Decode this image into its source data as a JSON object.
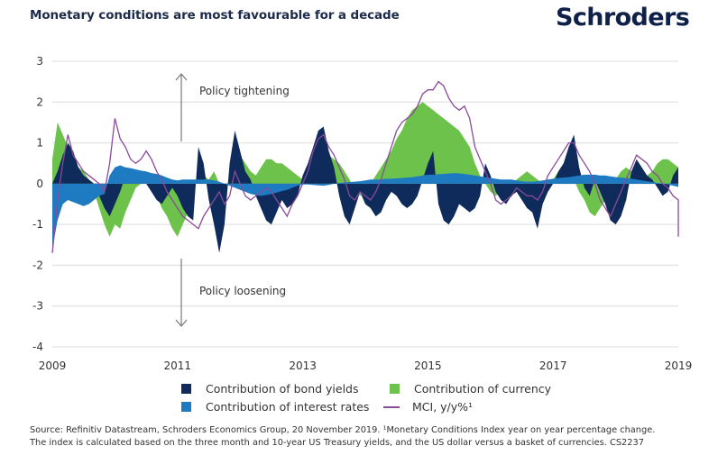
{
  "header": {
    "title": "Monetary conditions are most favourable for a decade",
    "logo": "Schroders"
  },
  "source": {
    "line1": "Source: Refinitiv Datastream, Schroders Economics Group, 20 November 2019. ¹Monetary Conditions Index year on year percentage change.",
    "line2": "The index is calculated based on the three month and 10-year US Treasury yields, and the US dollar versus a basket of currencies. CS2237"
  },
  "colors": {
    "bond": "#0f2b5b",
    "currency": "#6cc24a",
    "rates": "#1f7bc1",
    "mci": "#8a4a9a",
    "grid": "#e3e3e3",
    "arrow": "#777777"
  },
  "chart_data": {
    "type": "area",
    "title": "Monetary conditions are most favourable for a decade",
    "xlabel": "",
    "ylabel": "",
    "ylim": [
      -4,
      3
    ],
    "xlim": [
      2009.0,
      2019.9
    ],
    "yticks": [
      "3",
      "2",
      "1",
      "0",
      "-1",
      "-2",
      "-3",
      "-4"
    ],
    "ytick_values": [
      3,
      2,
      1,
      0,
      -1,
      -2,
      -3,
      -4
    ],
    "xticks": [
      "2009",
      "2011",
      "2013",
      "2015",
      "2017",
      "2019"
    ],
    "xtick_values": [
      2009,
      2011,
      2013,
      2015,
      2017,
      2019
    ],
    "grid": true,
    "legend_position": "bottom",
    "annotations": [
      {
        "text": "Policy tightening",
        "direction": "up"
      },
      {
        "text": "Policy loosening",
        "direction": "down"
      }
    ],
    "x": [
      2009.0,
      2009.083,
      2009.167,
      2009.25,
      2009.333,
      2009.417,
      2009.5,
      2009.583,
      2009.667,
      2009.75,
      2009.833,
      2009.917,
      2010.0,
      2010.083,
      2010.167,
      2010.25,
      2010.333,
      2010.417,
      2010.5,
      2010.583,
      2010.667,
      2010.75,
      2010.833,
      2010.917,
      2011.0,
      2011.083,
      2011.167,
      2011.25,
      2011.333,
      2011.417,
      2011.5,
      2011.583,
      2011.667,
      2011.75,
      2011.833,
      2011.917,
      2012.0,
      2012.083,
      2012.167,
      2012.25,
      2012.333,
      2012.417,
      2012.5,
      2012.583,
      2012.667,
      2012.75,
      2012.833,
      2012.917,
      2013.0,
      2013.083,
      2013.167,
      2013.25,
      2013.333,
      2013.417,
      2013.5,
      2013.583,
      2013.667,
      2013.75,
      2013.833,
      2013.917,
      2014.0,
      2014.083,
      2014.167,
      2014.25,
      2014.333,
      2014.417,
      2014.5,
      2014.583,
      2014.667,
      2014.75,
      2014.833,
      2014.917,
      2015.0,
      2015.083,
      2015.167,
      2015.25,
      2015.333,
      2015.417,
      2015.5,
      2015.583,
      2015.667,
      2015.75,
      2015.833,
      2015.917,
      2016.0,
      2016.083,
      2016.167,
      2016.25,
      2016.333,
      2016.417,
      2016.5,
      2016.583,
      2016.667,
      2016.75,
      2016.833,
      2016.917,
      2017.0,
      2017.083,
      2017.167,
      2017.25,
      2017.333,
      2017.417,
      2017.5,
      2017.583,
      2017.667,
      2017.75,
      2017.833,
      2017.917,
      2018.0,
      2018.083,
      2018.167,
      2018.25,
      2018.333,
      2018.417,
      2018.5,
      2018.583,
      2018.667,
      2018.75,
      2018.833,
      2018.917,
      2019.0,
      2019.083,
      2019.167,
      2019.25,
      2019.333,
      2019.417,
      2019.5,
      2019.583,
      2019.667,
      2019.75,
      2019.833,
      2019.9
    ],
    "series": [
      {
        "name": "Contribution of interest rates",
        "key": "rates",
        "values": [
          -1.6,
          -0.9,
          -0.5,
          -0.4,
          -0.45,
          -0.5,
          -0.55,
          -0.5,
          -0.4,
          -0.3,
          -0.25,
          0.2,
          0.4,
          0.45,
          0.4,
          0.38,
          0.35,
          0.32,
          0.3,
          0.26,
          0.24,
          0.2,
          0.15,
          0.1,
          0.08,
          0.1,
          0.1,
          0.1,
          0.1,
          0.1,
          0.1,
          0.08,
          0.05,
          0.0,
          -0.05,
          -0.1,
          -0.15,
          -0.2,
          -0.25,
          -0.28,
          -0.3,
          -0.28,
          -0.25,
          -0.22,
          -0.18,
          -0.15,
          -0.1,
          -0.05,
          -0.02,
          -0.02,
          -0.03,
          -0.04,
          -0.05,
          -0.03,
          0.0,
          0.02,
          0.03,
          0.04,
          0.05,
          0.06,
          0.08,
          0.1,
          0.1,
          0.1,
          0.12,
          0.12,
          0.13,
          0.14,
          0.15,
          0.16,
          0.18,
          0.2,
          0.22,
          0.22,
          0.23,
          0.24,
          0.25,
          0.26,
          0.25,
          0.24,
          0.22,
          0.2,
          0.18,
          0.16,
          0.14,
          0.12,
          0.1,
          0.1,
          0.1,
          0.08,
          0.06,
          0.05,
          0.05,
          0.06,
          0.08,
          0.1,
          0.12,
          0.14,
          0.15,
          0.16,
          0.18,
          0.2,
          0.22,
          0.22,
          0.22,
          0.2,
          0.2,
          0.18,
          0.16,
          0.15,
          0.14,
          0.12,
          0.1,
          0.08,
          0.06,
          0.04,
          0.02,
          0.0,
          -0.02,
          -0.05,
          -0.08,
          -0.1,
          -0.12,
          -0.15,
          -0.2,
          -0.25,
          -0.3,
          -0.35,
          -0.4,
          -0.45,
          -0.55,
          -0.6
        ]
      },
      {
        "name": "Contribution of bond yields",
        "key": "bond",
        "values": [
          0.0,
          0.3,
          0.7,
          1.0,
          0.8,
          0.4,
          0.2,
          0.1,
          0.0,
          -0.3,
          -0.6,
          -0.8,
          -0.5,
          -0.2,
          0.2,
          0.3,
          0.1,
          0.05,
          0.0,
          -0.2,
          -0.4,
          -0.5,
          -0.3,
          -0.1,
          -0.3,
          -0.6,
          -0.8,
          -0.9,
          0.9,
          0.5,
          -0.4,
          -1.0,
          -1.7,
          -1.0,
          0.5,
          1.3,
          0.8,
          0.3,
          0.1,
          -0.3,
          -0.6,
          -0.9,
          -1.0,
          -0.7,
          -0.4,
          -0.6,
          -0.5,
          -0.3,
          0.2,
          0.5,
          0.9,
          1.3,
          1.4,
          0.8,
          0.4,
          -0.3,
          -0.8,
          -1.0,
          -0.6,
          -0.2,
          -0.5,
          -0.6,
          -0.8,
          -0.7,
          -0.4,
          -0.2,
          -0.3,
          -0.5,
          -0.6,
          -0.5,
          -0.3,
          0.1,
          0.5,
          0.8,
          -0.5,
          -0.9,
          -1.0,
          -0.8,
          -0.5,
          -0.6,
          -0.7,
          -0.6,
          -0.3,
          0.5,
          0.2,
          -0.2,
          -0.4,
          -0.5,
          -0.3,
          -0.2,
          -0.4,
          -0.6,
          -0.7,
          -1.1,
          -0.5,
          -0.2,
          0.0,
          0.3,
          0.5,
          0.9,
          1.2,
          0.4,
          -0.1,
          -0.3,
          0.1,
          -0.2,
          -0.5,
          -0.9,
          -1.0,
          -0.8,
          -0.4,
          0.3,
          0.6,
          0.4,
          0.2,
          0.1,
          -0.1,
          -0.3,
          -0.2,
          0.2,
          0.4,
          0.3,
          0.2,
          0.1,
          -0.1,
          -0.2,
          -0.3,
          -0.4,
          -0.5,
          -0.6,
          -0.8,
          -1.0
        ]
      },
      {
        "name": "Contribution of currency",
        "key": "currency",
        "values": [
          0.6,
          1.5,
          1.2,
          0.9,
          0.6,
          0.4,
          0.3,
          0.1,
          -0.2,
          -0.6,
          -1.0,
          -1.3,
          -1.0,
          -1.1,
          -0.7,
          -0.4,
          -0.1,
          0.0,
          0.1,
          0.0,
          -0.3,
          -0.6,
          -0.8,
          -1.1,
          -1.3,
          -1.0,
          -0.7,
          -0.5,
          0.5,
          0.2,
          0.1,
          0.3,
          0.0,
          -0.5,
          0.3,
          0.5,
          0.7,
          0.5,
          0.3,
          0.2,
          0.4,
          0.6,
          0.6,
          0.5,
          0.5,
          0.4,
          0.3,
          0.2,
          0.1,
          0.0,
          0.3,
          0.4,
          0.5,
          0.7,
          0.6,
          0.5,
          0.3,
          0.1,
          -0.2,
          -0.3,
          -0.2,
          0.0,
          0.2,
          0.4,
          0.6,
          0.8,
          1.1,
          1.3,
          1.6,
          1.8,
          1.9,
          2.0,
          1.9,
          1.8,
          1.7,
          1.6,
          1.5,
          1.4,
          1.3,
          1.1,
          0.9,
          0.5,
          0.2,
          0.0,
          -0.2,
          -0.3,
          -0.2,
          -0.1,
          0.0,
          0.1,
          0.2,
          0.3,
          0.2,
          0.1,
          0.0,
          -0.1,
          0.1,
          0.3,
          0.4,
          0.3,
          0.1,
          -0.2,
          -0.4,
          -0.7,
          -0.8,
          -0.6,
          -0.4,
          -0.2,
          0.1,
          0.3,
          0.4,
          0.3,
          0.2,
          0.1,
          0.2,
          0.3,
          0.5,
          0.6,
          0.6,
          0.5,
          0.4,
          0.3,
          0.2,
          0.4,
          0.5,
          0.4,
          0.2,
          0.3,
          0.2,
          0.1,
          0.0,
          0.0
        ]
      },
      {
        "name": "MCI, y/y%¹",
        "key": "mci",
        "values": [
          -1.7,
          -0.4,
          0.5,
          1.2,
          0.7,
          0.5,
          0.3,
          0.2,
          0.1,
          0.0,
          -0.2,
          0.5,
          1.6,
          1.1,
          0.9,
          0.6,
          0.5,
          0.6,
          0.8,
          0.6,
          0.3,
          0.1,
          -0.2,
          -0.4,
          -0.6,
          -0.8,
          -0.9,
          -1.0,
          -1.1,
          -0.8,
          -0.6,
          -0.4,
          -0.2,
          -0.5,
          -0.3,
          0.3,
          0.0,
          -0.3,
          -0.4,
          -0.3,
          -0.2,
          -0.1,
          -0.2,
          -0.4,
          -0.6,
          -0.8,
          -0.5,
          -0.3,
          0.0,
          0.3,
          0.8,
          1.1,
          1.2,
          0.9,
          0.7,
          0.4,
          0.1,
          -0.3,
          -0.4,
          -0.2,
          -0.3,
          -0.4,
          -0.2,
          0.1,
          0.5,
          0.9,
          1.3,
          1.5,
          1.6,
          1.7,
          1.9,
          2.2,
          2.3,
          2.3,
          2.5,
          2.4,
          2.1,
          1.9,
          1.8,
          1.9,
          1.6,
          0.9,
          0.6,
          0.3,
          0.0,
          -0.4,
          -0.5,
          -0.4,
          -0.3,
          -0.1,
          -0.2,
          -0.3,
          -0.3,
          -0.4,
          -0.2,
          0.2,
          0.4,
          0.6,
          0.8,
          1.0,
          1.0,
          0.7,
          0.5,
          0.3,
          0.0,
          -0.4,
          -0.6,
          -0.8,
          -0.5,
          -0.2,
          0.1,
          0.4,
          0.7,
          0.6,
          0.5,
          0.3,
          0.2,
          0.0,
          -0.1,
          -0.3,
          -0.4,
          -0.5,
          -0.6,
          -0.7,
          -0.8,
          -0.9,
          -1.0,
          -1.1,
          -1.2,
          -1.2,
          -1.3,
          -1.3
        ]
      }
    ]
  }
}
